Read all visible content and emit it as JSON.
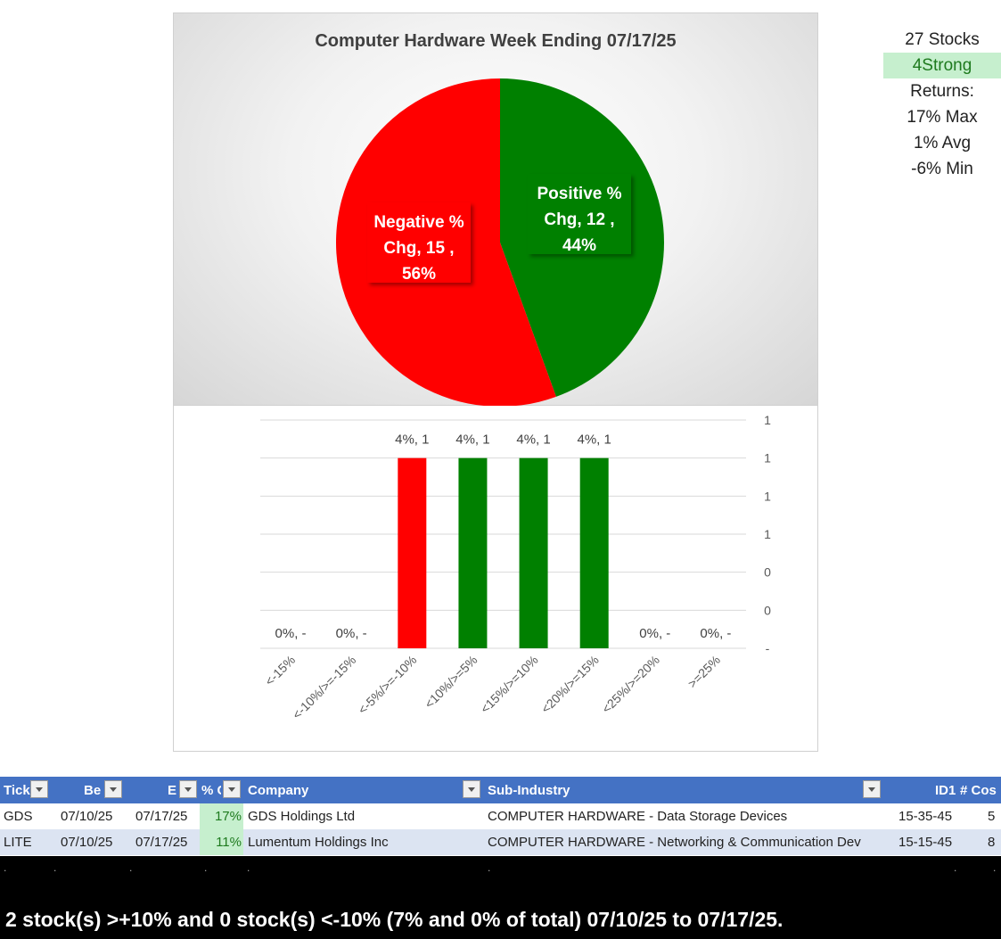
{
  "chart_data": [
    {
      "type": "pie",
      "title": "Computer Hardware Week Ending 07/17/25",
      "slices": [
        {
          "name": "Positive % Chg",
          "value": 12,
          "percent": "44%",
          "color": "#008000",
          "label": "Positive % Chg,  12 , 44%"
        },
        {
          "name": "Negative % Chg",
          "value": 15,
          "percent": "56%",
          "color": "#ff0000",
          "label": "Negative % Chg,  15 , 56%"
        }
      ]
    },
    {
      "type": "bar",
      "categories": [
        "<-15%",
        "<-10%/>=-15%",
        "<-5%/>=-10%",
        "<10%/>=5%",
        "<15%/>=10%",
        "<20%/>=15%",
        "<25%/>=20%",
        ">=25%"
      ],
      "values": [
        0,
        0,
        1,
        1,
        1,
        1,
        0,
        0
      ],
      "data_labels": [
        "0%,  -",
        "0%,  -",
        "4%,  1",
        "4%,  1",
        "4%,  1",
        "4%,  1",
        "0%,  -",
        "0%,  -"
      ],
      "colors": [
        "#ff0000",
        "#ff0000",
        "#ff0000",
        "#008000",
        "#008000",
        "#008000",
        "#008000",
        "#008000"
      ],
      "ylim": [
        0,
        1.2
      ],
      "y_tick_labels": [
        "-",
        "0",
        "0",
        "1",
        "1",
        "1",
        "1"
      ],
      "grid": true
    }
  ],
  "stats": {
    "stocks": "27 Stocks",
    "strong": "4Strong",
    "returns_label": "Returns:",
    "max": "17% Max",
    "avg": "1% Avg",
    "min": "-6% Min"
  },
  "table": {
    "headers": {
      "ticker": "Tick",
      "begin": "Be",
      "end": "E",
      "pct": "% C",
      "company": "Company",
      "subindustry": "Sub-Industry",
      "id1": "ID1",
      "cos": "# Cos"
    },
    "rows": [
      {
        "ticker": "GDS",
        "begin": "07/10/25",
        "end": "07/17/25",
        "pct": "17%",
        "company": "GDS Holdings Ltd",
        "subindustry": "COMPUTER HARDWARE - Data Storage Devices",
        "id1": "15-35-45",
        "cos": "5"
      },
      {
        "ticker": "LITE",
        "begin": "07/10/25",
        "end": "07/17/25",
        "pct": "11%",
        "company": "Lumentum Holdings Inc",
        "subindustry": "COMPUTER HARDWARE - Networking & Communication Dev",
        "id1": "15-15-45",
        "cos": "8"
      }
    ]
  },
  "footer": {
    "summary": "2 stock(s) >+10% and 0 stock(s) <-10% (7% and 0% of total) 07/10/25 to 07/17/25."
  }
}
